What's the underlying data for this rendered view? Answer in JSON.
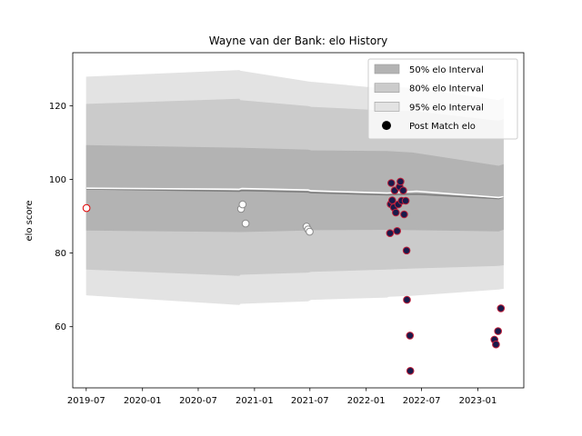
{
  "chart_data": {
    "type": "scatter",
    "title": "Wayne van der Bank: elo History",
    "xlabel": "",
    "ylabel": "elo score",
    "xlim": [
      "2019-05-18",
      "2023-05-31"
    ],
    "ylim": [
      43.4,
      134.4
    ],
    "x_ticks": [
      "2019-07-01",
      "2020-01-01",
      "2020-07-01",
      "2021-01-01",
      "2021-07-01",
      "2022-01-01",
      "2022-07-01",
      "2023-01-01"
    ],
    "x_tick_labels": [
      "2019-07",
      "2020-01",
      "2020-07",
      "2021-01",
      "2021-07",
      "2022-01",
      "2022-07",
      "2023-01"
    ],
    "y_ticks": [
      60,
      80,
      100,
      120
    ],
    "grid": false,
    "legend_position": "top-right",
    "bands": [
      {
        "name": "95% elo Interval",
        "color": "#e3e3e3",
        "points": [
          {
            "x": "2019-07-02",
            "low": 68.6,
            "high": 127.8
          },
          {
            "x": "2020-11-12",
            "low": 66.0,
            "high": 129.6
          },
          {
            "x": "2020-11-16",
            "low": 66.3,
            "high": 129.4
          },
          {
            "x": "2021-06-25",
            "low": 67.0,
            "high": 126.5
          },
          {
            "x": "2021-07-05",
            "low": 67.4,
            "high": 126.4
          },
          {
            "x": "2022-03-10",
            "low": 68.0,
            "high": 124.5
          },
          {
            "x": "2022-03-15",
            "low": 68.2,
            "high": 125.0
          },
          {
            "x": "2022-06-01",
            "low": 68.5,
            "high": 124.8
          },
          {
            "x": "2023-03-10",
            "low": 70.2,
            "high": 121.4
          },
          {
            "x": "2023-03-25",
            "low": 70.4,
            "high": 122.0
          }
        ]
      },
      {
        "name": "80% elo Interval",
        "color": "#cbcbcb",
        "points": [
          {
            "x": "2019-07-02",
            "low": 75.6,
            "high": 120.4
          },
          {
            "x": "2020-11-12",
            "low": 73.9,
            "high": 121.8
          },
          {
            "x": "2020-11-16",
            "low": 74.2,
            "high": 121.4
          },
          {
            "x": "2021-06-25",
            "low": 74.8,
            "high": 119.8
          },
          {
            "x": "2021-07-05",
            "low": 75.0,
            "high": 119.6
          },
          {
            "x": "2022-03-10",
            "low": 75.6,
            "high": 118.6
          },
          {
            "x": "2022-06-01",
            "low": 75.9,
            "high": 118.5
          },
          {
            "x": "2023-03-10",
            "low": 76.6,
            "high": 115.8
          },
          {
            "x": "2023-03-25",
            "low": 76.8,
            "high": 116.2
          }
        ]
      },
      {
        "name": "50% elo Interval",
        "color": "#b3b3b3",
        "points": [
          {
            "x": "2019-07-02",
            "low": 86.2,
            "high": 109.2
          },
          {
            "x": "2020-11-12",
            "low": 85.8,
            "high": 108.5
          },
          {
            "x": "2021-06-25",
            "low": 86.2,
            "high": 108.0
          },
          {
            "x": "2021-07-05",
            "low": 86.3,
            "high": 107.8
          },
          {
            "x": "2022-03-10",
            "low": 86.4,
            "high": 107.6
          },
          {
            "x": "2022-06-01",
            "low": 86.3,
            "high": 107.2
          },
          {
            "x": "2023-03-10",
            "low": 86.0,
            "high": 103.6
          },
          {
            "x": "2023-03-25",
            "low": 86.4,
            "high": 104.0
          }
        ]
      }
    ],
    "mean_line": {
      "color": "#7f7f7f",
      "points": [
        {
          "x": "2019-07-02",
          "y": 97.4
        },
        {
          "x": "2020-11-12",
          "y": 96.8
        },
        {
          "x": "2020-11-20",
          "y": 97.0
        },
        {
          "x": "2021-06-25",
          "y": 96.6
        },
        {
          "x": "2021-07-05",
          "y": 96.4
        },
        {
          "x": "2022-03-10",
          "y": 95.8
        },
        {
          "x": "2022-06-15",
          "y": 96.0
        },
        {
          "x": "2023-03-10",
          "y": 94.8
        },
        {
          "x": "2023-03-25",
          "y": 95.2
        }
      ]
    },
    "median_line": {
      "color": "#ffffff",
      "points": [
        {
          "x": "2019-07-02",
          "y": 97.6
        },
        {
          "x": "2020-11-12",
          "y": 97.3
        },
        {
          "x": "2020-11-20",
          "y": 97.5
        },
        {
          "x": "2021-06-25",
          "y": 97.1
        },
        {
          "x": "2021-07-05",
          "y": 96.9
        },
        {
          "x": "2022-03-10",
          "y": 96.3
        },
        {
          "x": "2022-06-15",
          "y": 96.8
        },
        {
          "x": "2023-03-10",
          "y": 95.1
        },
        {
          "x": "2023-03-25",
          "y": 95.3
        }
      ]
    },
    "series": [
      {
        "name": "Post Match elo",
        "points": [
          {
            "x": "2019-07-02",
            "y": 92.2,
            "fill": "#ffffff",
            "edge": "#e00000"
          },
          {
            "x": "2020-11-18",
            "y": 92.0,
            "fill": "#ffffff",
            "edge": "#8a8a8a"
          },
          {
            "x": "2020-11-23",
            "y": 93.2,
            "fill": "#ffffff",
            "edge": "#8a8a8a"
          },
          {
            "x": "2020-12-03",
            "y": 88.0,
            "fill": "#ffffff",
            "edge": "#8a8a8a"
          },
          {
            "x": "2021-06-20",
            "y": 87.2,
            "fill": "#ffffff",
            "edge": "#8a8a8a"
          },
          {
            "x": "2021-06-25",
            "y": 86.4,
            "fill": "#ffffff",
            "edge": "#8a8a8a"
          },
          {
            "x": "2021-06-30",
            "y": 85.8,
            "fill": "#ffffff",
            "edge": "#8a8a8a"
          },
          {
            "x": "2022-03-20",
            "y": 85.4,
            "fill": "#1a1a4a",
            "edge": "#c0203a"
          },
          {
            "x": "2022-03-22",
            "y": 93.3,
            "fill": "#1a1a4a",
            "edge": "#c0203a"
          },
          {
            "x": "2022-03-24",
            "y": 99.0,
            "fill": "#1a1a4a",
            "edge": "#c0203a"
          },
          {
            "x": "2022-03-27",
            "y": 94.3,
            "fill": "#1a1a4a",
            "edge": "#c0203a"
          },
          {
            "x": "2022-04-01",
            "y": 92.4,
            "fill": "#1a1a4a",
            "edge": "#c0203a"
          },
          {
            "x": "2022-04-04",
            "y": 97.0,
            "fill": "#1a1a4a",
            "edge": "#c0203a"
          },
          {
            "x": "2022-04-08",
            "y": 91.0,
            "fill": "#1a1a4a",
            "edge": "#c0203a"
          },
          {
            "x": "2022-04-12",
            "y": 86.0,
            "fill": "#1a1a4a",
            "edge": "#c0203a"
          },
          {
            "x": "2022-04-16",
            "y": 93.2,
            "fill": "#1a1a4a",
            "edge": "#c0203a"
          },
          {
            "x": "2022-04-20",
            "y": 98.0,
            "fill": "#1a1a4a",
            "edge": "#c0203a"
          },
          {
            "x": "2022-04-23",
            "y": 99.4,
            "fill": "#1a1a4a",
            "edge": "#c0203a"
          },
          {
            "x": "2022-04-27",
            "y": 94.2,
            "fill": "#1a1a4a",
            "edge": "#c0203a"
          },
          {
            "x": "2022-05-02",
            "y": 97.0,
            "fill": "#1a1a4a",
            "edge": "#c0203a"
          },
          {
            "x": "2022-05-05",
            "y": 90.5,
            "fill": "#1a1a4a",
            "edge": "#c0203a"
          },
          {
            "x": "2022-05-10",
            "y": 94.2,
            "fill": "#1a1a4a",
            "edge": "#c0203a"
          },
          {
            "x": "2022-05-13",
            "y": 80.7,
            "fill": "#1a1a4a",
            "edge": "#c0203a"
          },
          {
            "x": "2022-05-14",
            "y": 67.3,
            "fill": "#1a1a4a",
            "edge": "#c0203a"
          },
          {
            "x": "2022-05-24",
            "y": 57.6,
            "fill": "#1a1a4a",
            "edge": "#c0203a"
          },
          {
            "x": "2022-05-25",
            "y": 48.0,
            "fill": "#1a1a4a",
            "edge": "#c0203a"
          },
          {
            "x": "2023-02-24",
            "y": 56.5,
            "fill": "#1a1a4a",
            "edge": "#c0203a"
          },
          {
            "x": "2023-03-01",
            "y": 55.2,
            "fill": "#1a1a4a",
            "edge": "#c0203a"
          },
          {
            "x": "2023-03-08",
            "y": 58.8,
            "fill": "#1a1a4a",
            "edge": "#c0203a"
          },
          {
            "x": "2023-03-17",
            "y": 65.0,
            "fill": "#1a1a4a",
            "edge": "#c0203a"
          }
        ]
      }
    ],
    "legend": [
      {
        "label": "50% elo Interval",
        "kind": "patch",
        "color": "#b3b3b3"
      },
      {
        "label": "80% elo Interval",
        "kind": "patch",
        "color": "#cbcbcb"
      },
      {
        "label": "95% elo Interval",
        "kind": "patch",
        "color": "#e3e3e3"
      },
      {
        "label": "Post Match elo",
        "kind": "marker",
        "color": "#000000"
      }
    ]
  }
}
